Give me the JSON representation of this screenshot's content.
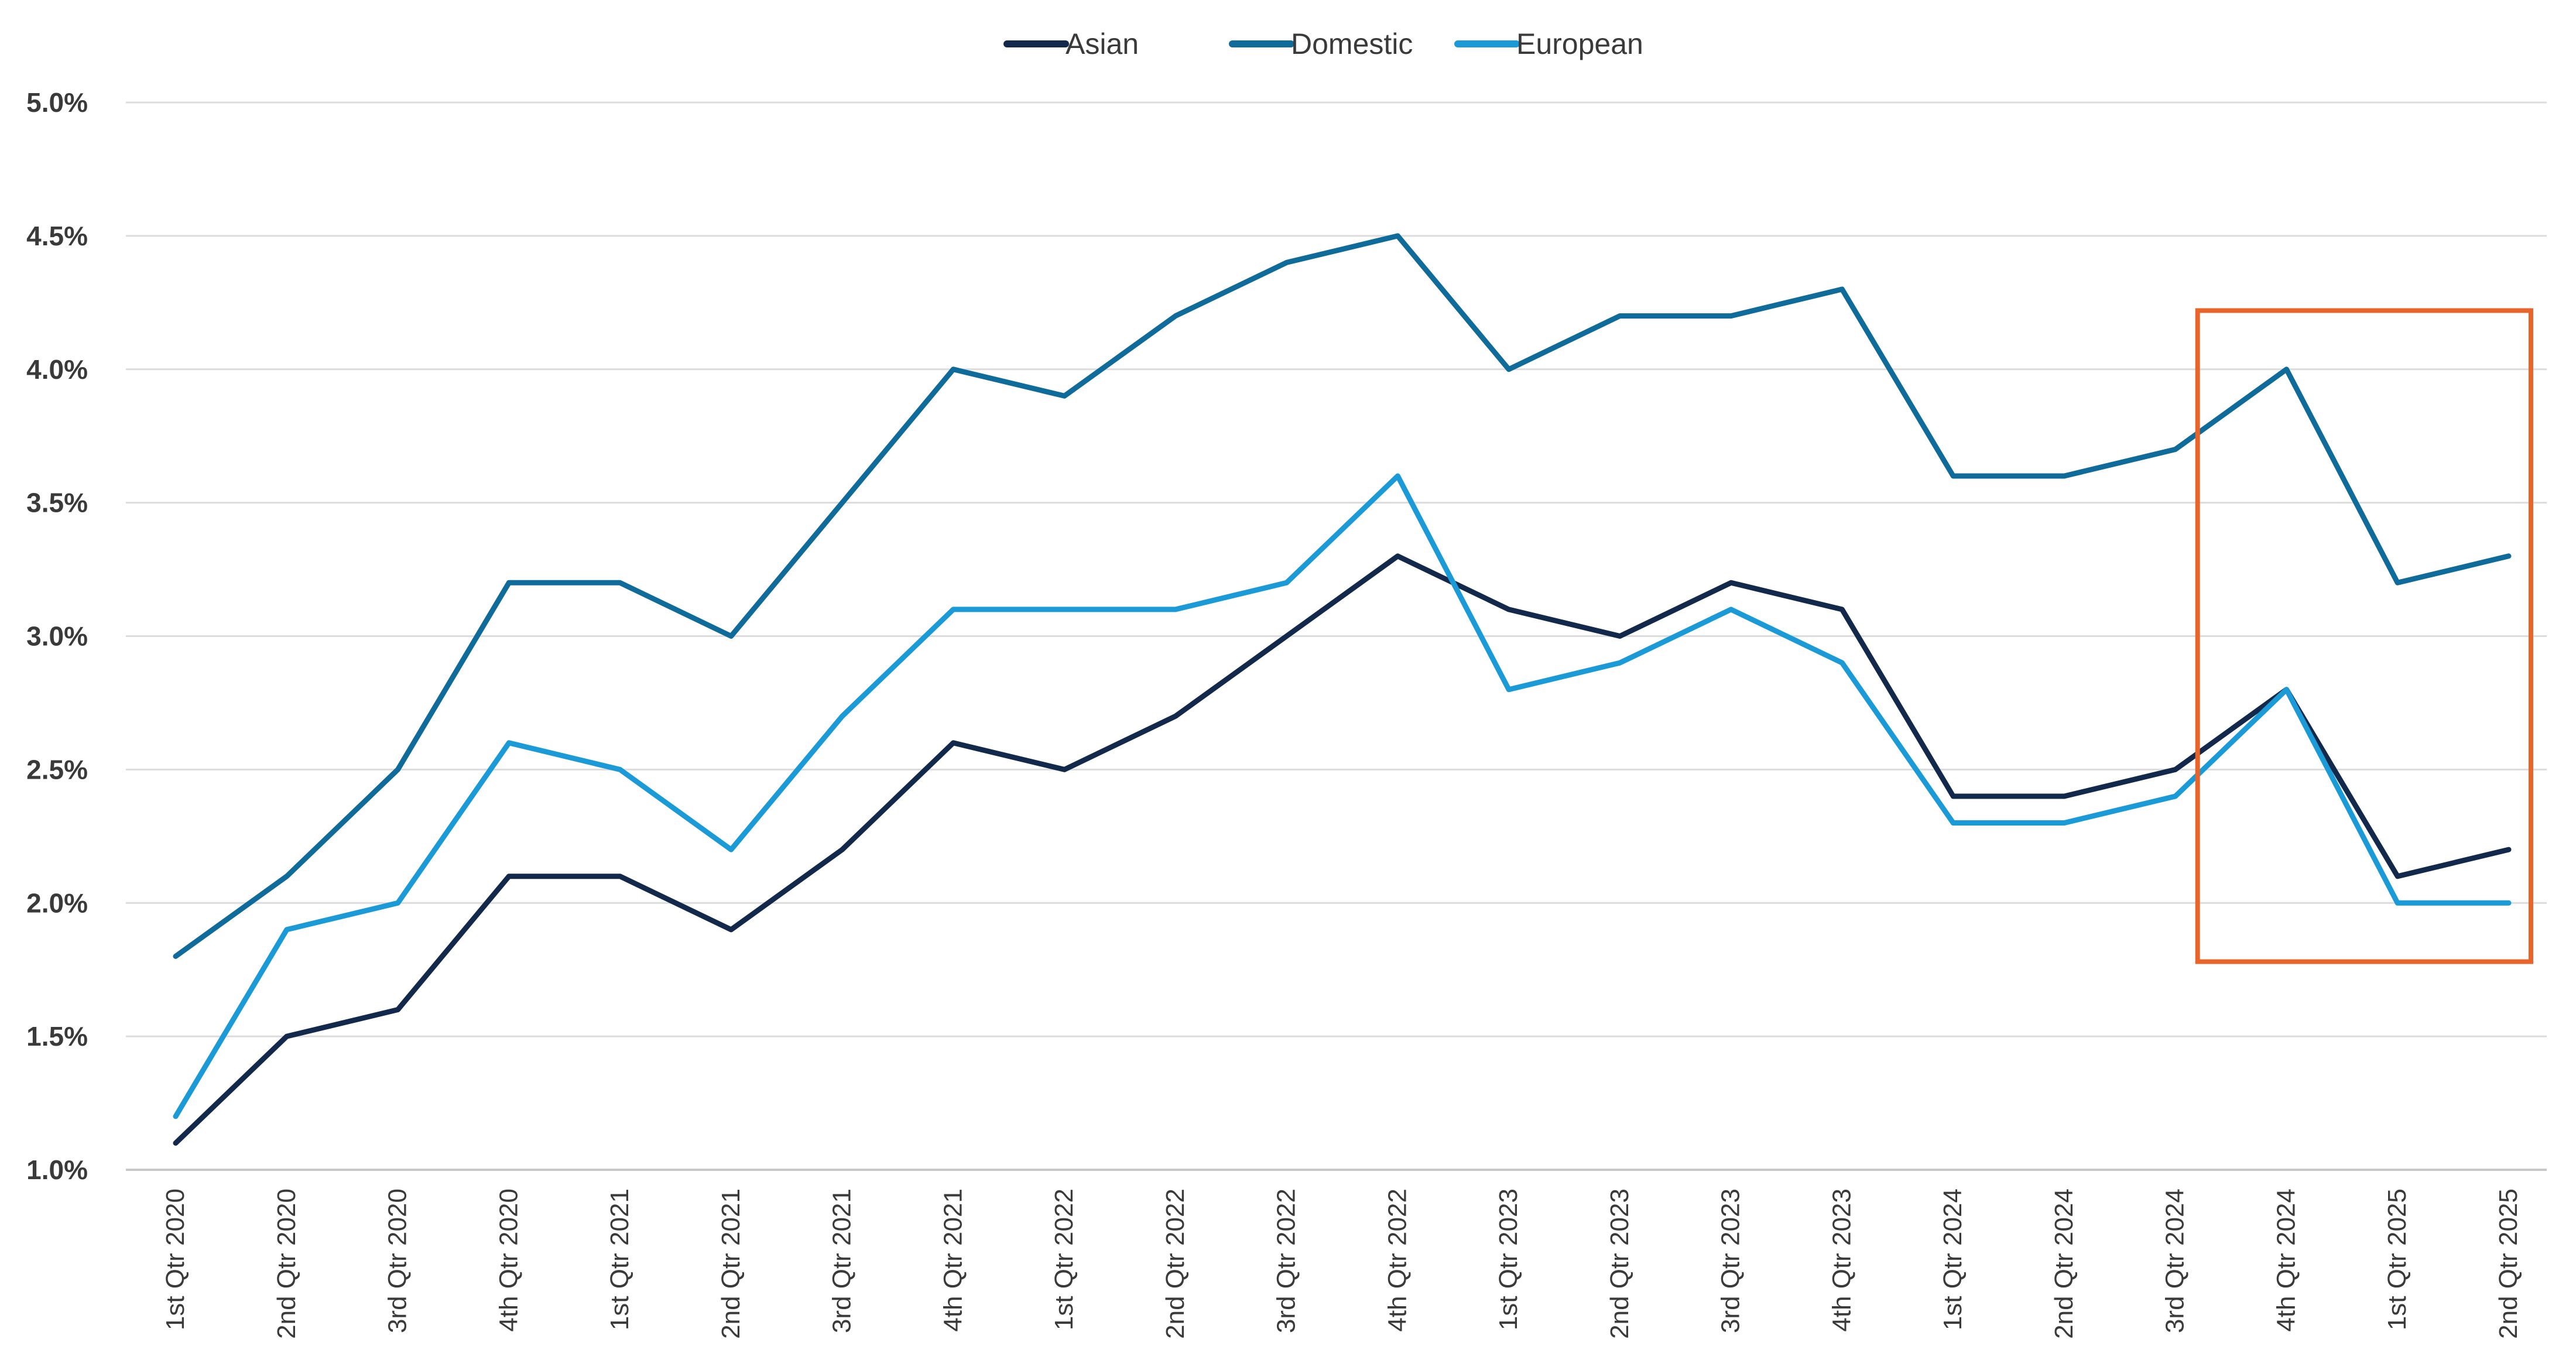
{
  "chart_data": {
    "type": "line",
    "categories": [
      "1st Qtr 2020",
      "2nd Qtr 2020",
      "3rd Qtr 2020",
      "4th Qtr 2020",
      "1st Qtr 2021",
      "2nd Qtr 2021",
      "3rd Qtr 2021",
      "4th Qtr 2021",
      "1st Qtr 2022",
      "2nd Qtr 2022",
      "3rd Qtr 2022",
      "4th Qtr 2022",
      "1st Qtr 2023",
      "2nd Qtr 2023",
      "3rd Qtr 2023",
      "4th Qtr 2023",
      "1st Qtr 2024",
      "2nd Qtr 2024",
      "3rd Qtr 2024",
      "4th Qtr 2024",
      "1st Qtr 2025",
      "2nd Qtr 2025"
    ],
    "series": [
      {
        "name": "Asian",
        "color": "#13294b",
        "values": [
          1.1,
          1.5,
          1.6,
          2.1,
          2.1,
          1.9,
          2.2,
          2.6,
          2.5,
          2.7,
          3.0,
          3.3,
          3.1,
          3.0,
          3.2,
          3.1,
          2.4,
          2.4,
          2.5,
          2.8,
          2.1,
          2.2
        ]
      },
      {
        "name": "Domestic",
        "color": "#0f6b99",
        "values": [
          1.8,
          2.1,
          2.5,
          3.2,
          3.2,
          3.0,
          3.5,
          4.0,
          3.9,
          4.2,
          4.4,
          4.5,
          4.0,
          4.2,
          4.2,
          4.3,
          3.6,
          3.6,
          3.7,
          4.0,
          3.2,
          3.3
        ]
      },
      {
        "name": "European",
        "color": "#1a9ad6",
        "values": [
          1.2,
          1.9,
          2.0,
          2.6,
          2.5,
          2.2,
          2.7,
          3.1,
          3.1,
          3.1,
          3.2,
          3.6,
          2.8,
          2.9,
          3.1,
          2.9,
          2.3,
          2.3,
          2.4,
          2.8,
          2.0,
          2.0
        ]
      }
    ],
    "y_ticks": [
      "1.0%",
      "1.5%",
      "2.0%",
      "2.5%",
      "3.0%",
      "3.5%",
      "4.0%",
      "4.5%",
      "5.0%"
    ],
    "ylim": [
      1.0,
      5.0
    ],
    "grid": true,
    "legend_position": "top-center",
    "highlight": {
      "from_category": "4th Qtr 2024",
      "to_category": "2nd Qtr 2025",
      "y_range": [
        1.78,
        4.22
      ],
      "color": "#e8642b"
    }
  }
}
